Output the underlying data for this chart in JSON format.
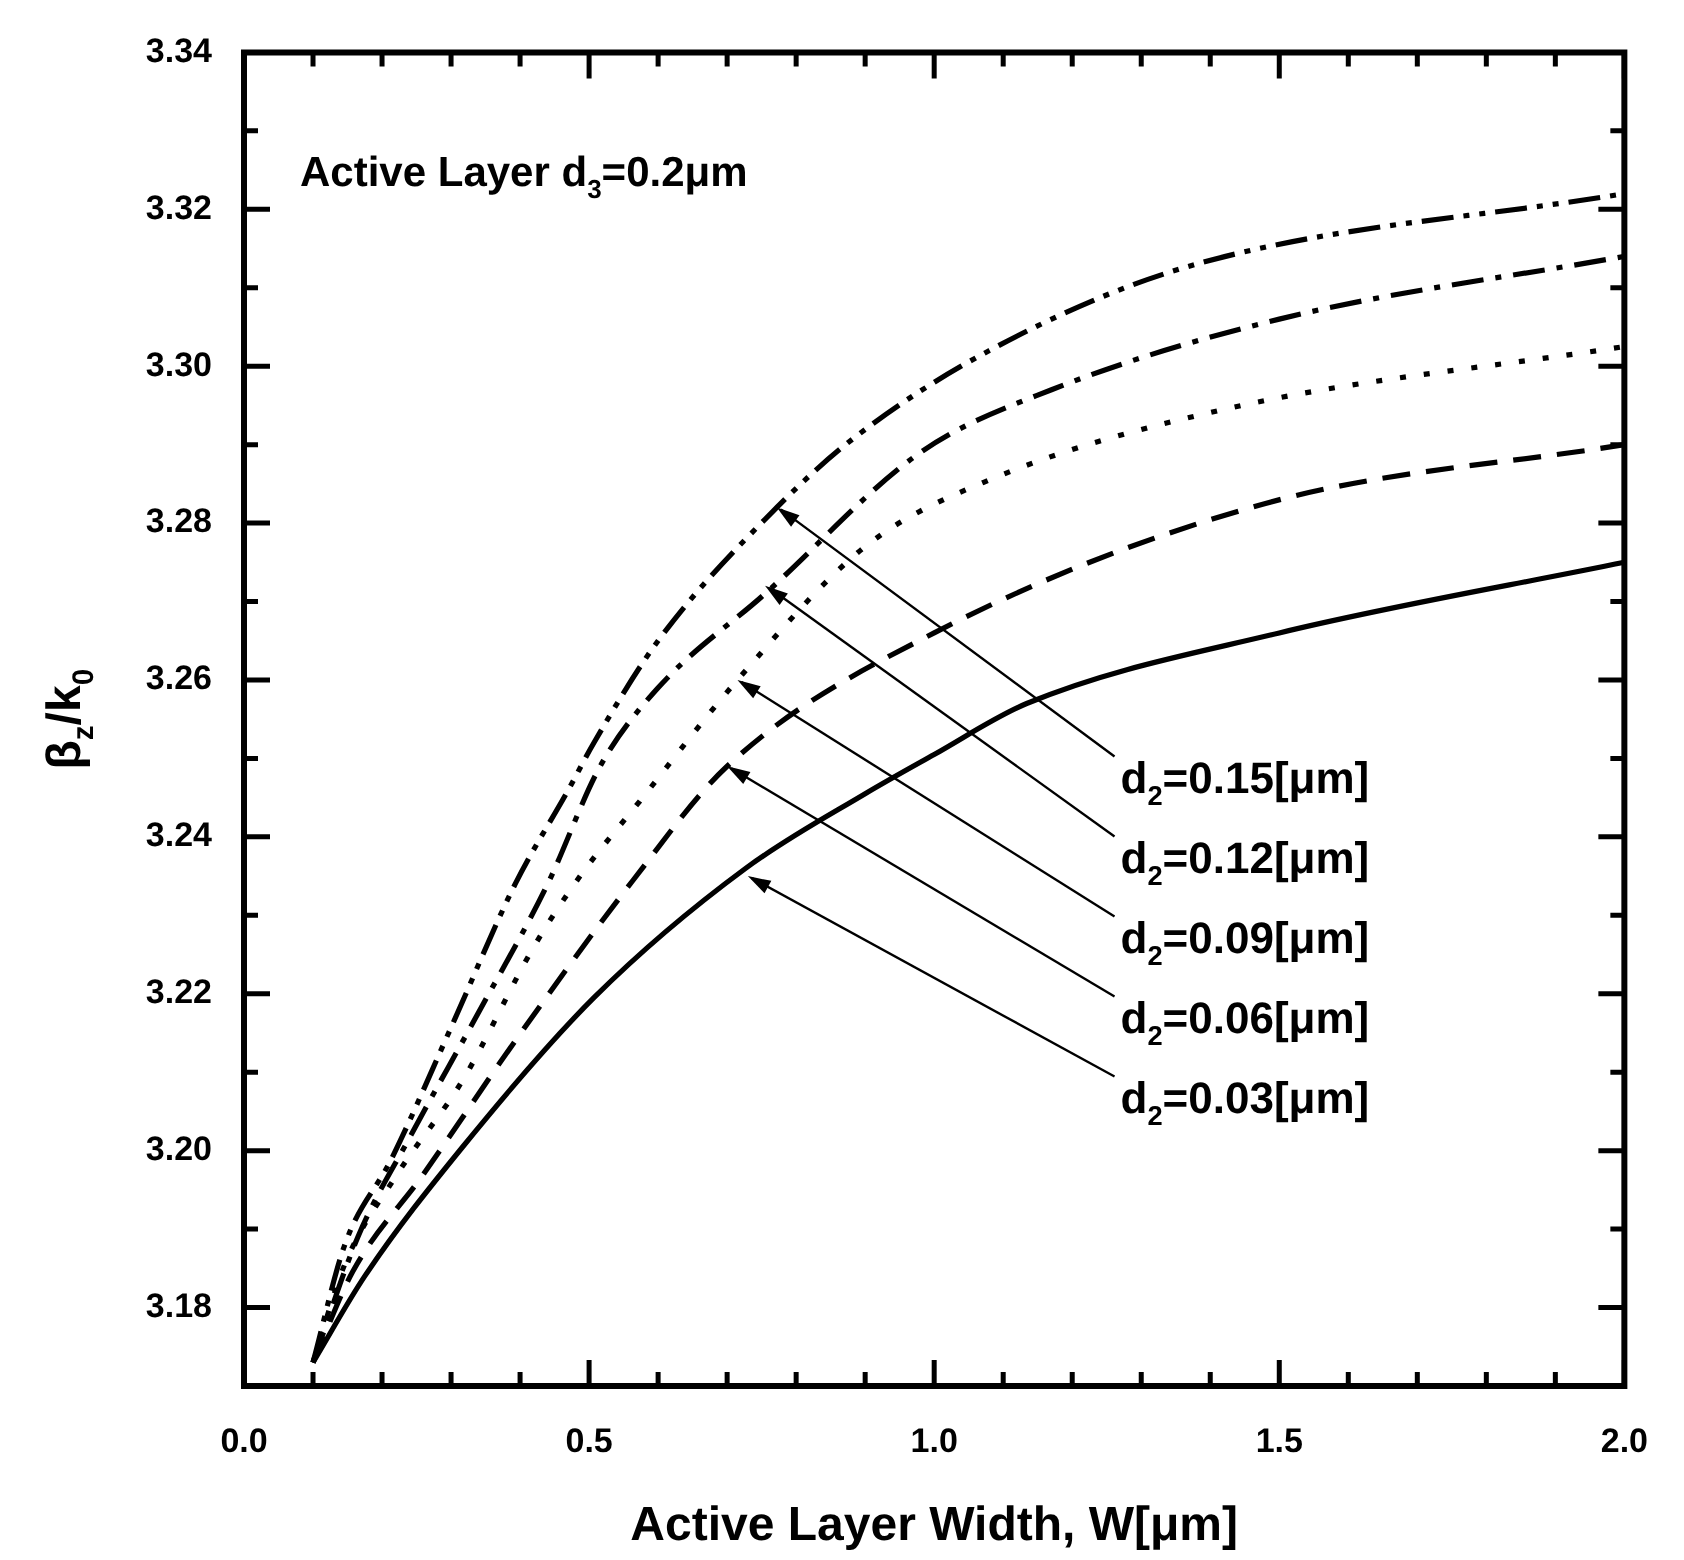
{
  "chart_data": {
    "type": "line",
    "title": "Active Layer d$_{3}$=0.2μm",
    "xlabel": "Active Layer Width, W[μm]",
    "ylabel": "β$_{z}$/k$_{0}$",
    "xlim": [
      0,
      2
    ],
    "ylim": [
      3.17,
      3.34
    ],
    "xticks": [
      {
        "value": 0,
        "label": "0.0"
      },
      {
        "value": 0.1,
        "label": null
      },
      {
        "value": 0.2,
        "label": null
      },
      {
        "value": 0.3,
        "label": null
      },
      {
        "value": 0.4,
        "label": null
      },
      {
        "value": 0.5,
        "label": "0.5"
      },
      {
        "value": 0.6,
        "label": null
      },
      {
        "value": 0.7,
        "label": null
      },
      {
        "value": 0.8,
        "label": null
      },
      {
        "value": 0.9,
        "label": null
      },
      {
        "value": 1,
        "label": "1.0"
      },
      {
        "value": 1.1,
        "label": null
      },
      {
        "value": 1.2,
        "label": null
      },
      {
        "value": 1.3,
        "label": null
      },
      {
        "value": 1.4,
        "label": null
      },
      {
        "value": 1.5,
        "label": "1.5"
      },
      {
        "value": 1.6,
        "label": null
      },
      {
        "value": 1.7,
        "label": null
      },
      {
        "value": 1.8,
        "label": null
      },
      {
        "value": 1.9,
        "label": null
      },
      {
        "value": 2,
        "label": "2.0"
      }
    ],
    "yticks": [
      {
        "value": 3.18,
        "label": "3.18"
      },
      {
        "value": 3.19,
        "label": null
      },
      {
        "value": 3.2,
        "label": "3.20"
      },
      {
        "value": 3.21,
        "label": null
      },
      {
        "value": 3.22,
        "label": "3.22"
      },
      {
        "value": 3.23,
        "label": null
      },
      {
        "value": 3.24,
        "label": "3.24"
      },
      {
        "value": 3.25,
        "label": null
      },
      {
        "value": 3.26,
        "label": "3.26"
      },
      {
        "value": 3.27,
        "label": null
      },
      {
        "value": 3.28,
        "label": "3.28"
      },
      {
        "value": 3.29,
        "label": null
      },
      {
        "value": 3.3,
        "label": "3.30"
      },
      {
        "value": 3.31,
        "label": null
      },
      {
        "value": 3.32,
        "label": "3.32"
      },
      {
        "value": 3.33,
        "label": null
      },
      {
        "value": 3.34,
        "label": "3.34"
      }
    ],
    "grid": false,
    "legend": false,
    "marker": "none",
    "series": [
      {
        "color": "#000000",
        "line_style": "solid",
        "x": [
          0.1,
          0.175,
          0.317,
          0.507,
          0.727,
          0.9,
          1.0,
          1.134,
          1.5,
          2.0
        ],
        "values": [
          3.173,
          3.184,
          3.2005,
          3.2195,
          3.236,
          3.2455,
          3.2505,
          3.257,
          3.266,
          3.275
        ]
      },
      {
        "color": "#000000",
        "line_style": "dashed",
        "x": [
          0.1,
          0.157,
          0.26,
          0.393,
          0.564,
          0.7,
          1.0,
          1.48,
          2.0
        ],
        "values": [
          3.173,
          3.1845,
          3.197,
          3.214,
          3.2345,
          3.249,
          3.266,
          3.2825,
          3.29
        ]
      },
      {
        "color": "#000000",
        "line_style": "dotted",
        "x": [
          0.1,
          0.146,
          0.222,
          0.317,
          0.42,
          0.487,
          0.573,
          0.715,
          0.9,
          1.08,
          1.42,
          2.0
        ],
        "values": [
          3.173,
          3.1855,
          3.197,
          3.209,
          3.226,
          3.235,
          3.2445,
          3.26,
          3.277,
          3.2855,
          3.2945,
          3.3025
        ]
      },
      {
        "color": "#000000",
        "line_style": "dashdot",
        "x": [
          0.1,
          0.165,
          0.242,
          0.336,
          0.44,
          0.516,
          0.6,
          0.755,
          0.98,
          1.17,
          1.5,
          2.0
        ],
        "values": [
          3.173,
          3.189,
          3.202,
          3.217,
          3.234,
          3.249,
          3.259,
          3.271,
          3.289,
          3.297,
          3.306,
          3.314
        ]
      },
      {
        "color": "#000000",
        "line_style": "dashdotdot",
        "x": [
          0.1,
          0.146,
          0.214,
          0.299,
          0.393,
          0.47,
          0.507,
          0.6,
          0.772,
          0.886,
          1.08,
          1.36,
          2.0
        ],
        "values": [
          3.173,
          3.188,
          3.199,
          3.2155,
          3.234,
          3.246,
          3.252,
          3.265,
          3.282,
          3.291,
          3.302,
          3.3125,
          3.322
        ]
      }
    ],
    "annotations": [
      {
        "text": "d$_{2}$=0.15[μm]",
        "x": 0.772,
        "y": 3.282
      },
      {
        "text": "d$_{2}$=0.12[μm]",
        "x": 0.755,
        "y": 3.272
      },
      {
        "text": "d$_{2}$=0.09[μm]",
        "x": 0.715,
        "y": 3.26
      },
      {
        "text": "d$_{2}$=0.06[μm]",
        "x": 0.7,
        "y": 3.249
      },
      {
        "text": "d$_{2}$=0.03[μm]",
        "x": 0.73,
        "y": 3.235
      }
    ]
  }
}
